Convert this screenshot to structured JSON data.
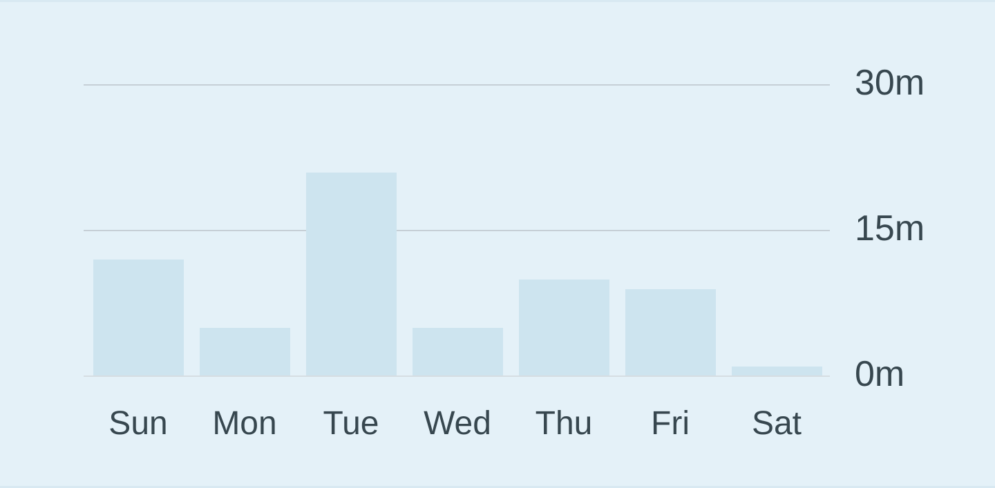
{
  "chart_data": {
    "type": "bar",
    "title": "",
    "categories": [
      "Sun",
      "Mon",
      "Tue",
      "Wed",
      "Thu",
      "Fri",
      "Sat"
    ],
    "values": [
      11.9,
      4.9,
      20.9,
      4.9,
      9.9,
      8.9,
      0.9
    ],
    "unit_suffix": "m",
    "ylim": [
      0,
      30
    ],
    "yticks": [
      {
        "value": 0,
        "label": "0m"
      },
      {
        "value": 15,
        "label": "15m"
      },
      {
        "value": 30,
        "label": "30m"
      }
    ],
    "grid": true,
    "legend": false,
    "ytick_side": "right"
  },
  "colors": {
    "background": "#e4f1f8",
    "edge_strip": "#d8e9f2",
    "bar_fill": "#cde4ef",
    "gridline": "#c6cfd6",
    "baseline": "#d6dde2",
    "label_text": "#37474f"
  }
}
